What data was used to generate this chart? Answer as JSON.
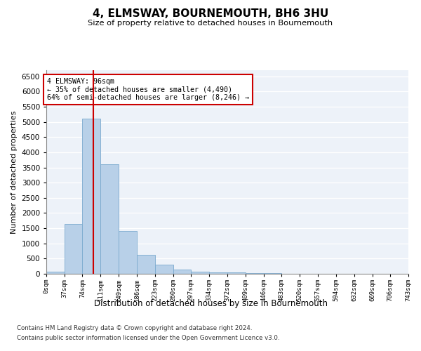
{
  "title": "4, ELMSWAY, BOURNEMOUTH, BH6 3HU",
  "subtitle": "Size of property relative to detached houses in Bournemouth",
  "xlabel": "Distribution of detached houses by size in Bournemouth",
  "ylabel": "Number of detached properties",
  "bar_color": "#b8d0e8",
  "bar_edge_color": "#7aaace",
  "background_color": "#edf2f9",
  "grid_color": "#ffffff",
  "annotation_text": "4 ELMSWAY: 96sqm\n← 35% of detached houses are smaller (4,490)\n64% of semi-detached houses are larger (8,246) →",
  "vline_x": 96,
  "vline_color": "#cc0000",
  "bin_edges": [
    0,
    37,
    74,
    111,
    149,
    186,
    223,
    260,
    297,
    334,
    372,
    409,
    446,
    483,
    520,
    557,
    594,
    632,
    669,
    706,
    743
  ],
  "bin_labels": [
    "0sqm",
    "37sqm",
    "74sqm",
    "111sqm",
    "149sqm",
    "186sqm",
    "223sqm",
    "260sqm",
    "297sqm",
    "334sqm",
    "372sqm",
    "409sqm",
    "446sqm",
    "483sqm",
    "520sqm",
    "557sqm",
    "594sqm",
    "632sqm",
    "669sqm",
    "706sqm",
    "743sqm"
  ],
  "counts": [
    70,
    1650,
    5100,
    3600,
    1400,
    620,
    300,
    140,
    80,
    50,
    40,
    30,
    30,
    10,
    8,
    5,
    5,
    3,
    3,
    3
  ],
  "ylim": [
    0,
    6700
  ],
  "xlim_left": 0,
  "xlim_right": 743,
  "yticks": [
    0,
    500,
    1000,
    1500,
    2000,
    2500,
    3000,
    3500,
    4000,
    4500,
    5000,
    5500,
    6000,
    6500
  ],
  "footer_line1": "Contains HM Land Registry data © Crown copyright and database right 2024.",
  "footer_line2": "Contains public sector information licensed under the Open Government Licence v3.0."
}
